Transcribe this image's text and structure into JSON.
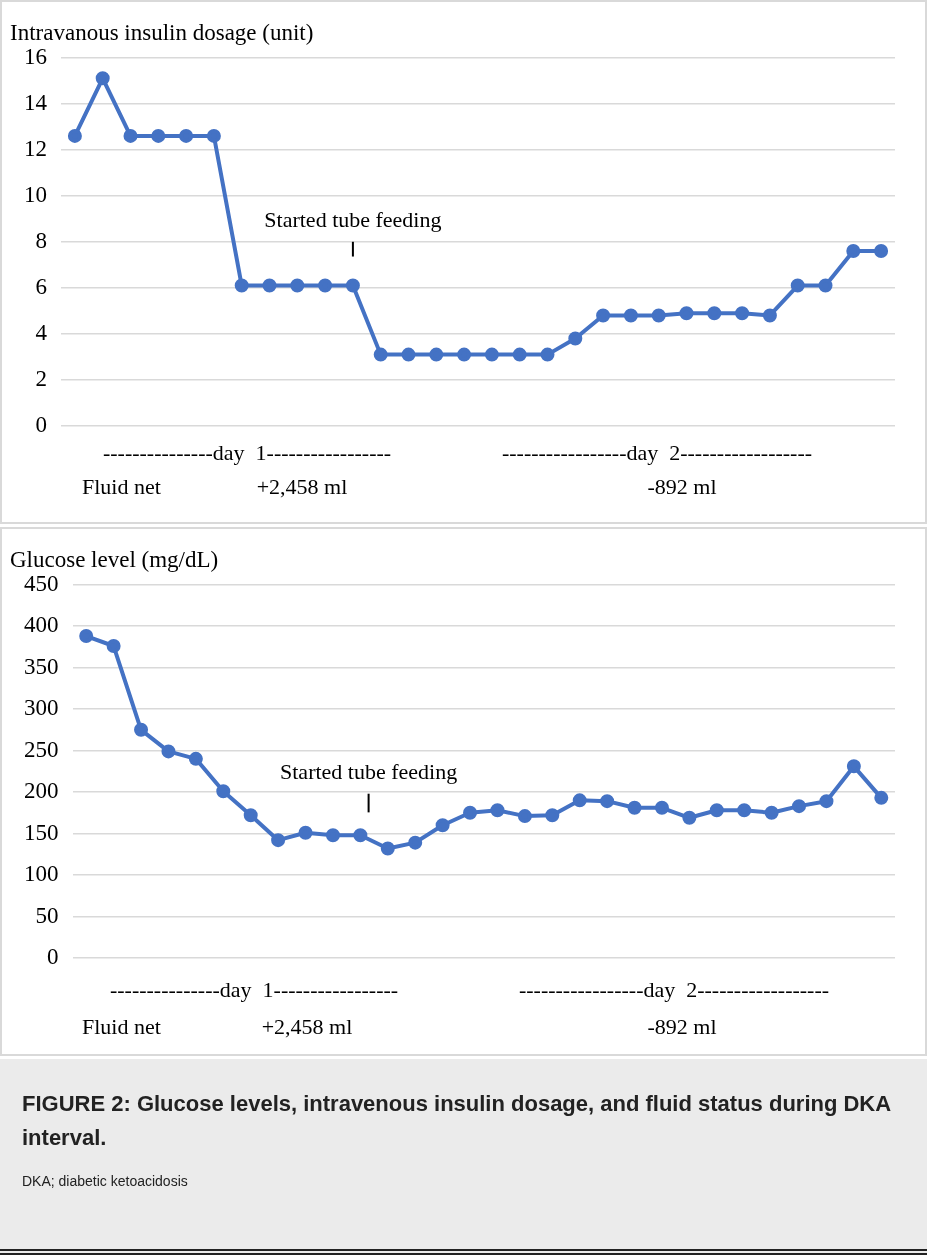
{
  "chart_data": [
    {
      "type": "line",
      "title": "Intravanous insulin dosage (unit)",
      "categories": [
        null,
        null,
        null,
        null,
        null,
        null,
        null,
        null,
        null,
        null,
        null,
        null,
        null,
        null,
        null,
        null,
        null,
        null,
        null,
        null,
        null,
        null,
        null,
        null,
        null,
        null,
        null,
        null,
        null,
        null
      ],
      "values": [
        12.6,
        15.1,
        12.6,
        12.6,
        12.6,
        12.6,
        6.1,
        6.1,
        6.1,
        6.1,
        6.1,
        3.1,
        3.1,
        3.1,
        3.1,
        3.1,
        3.1,
        3.1,
        3.8,
        4.8,
        4.8,
        4.8,
        4.9,
        4.9,
        4.9,
        4.8,
        6.1,
        6.1,
        7.6,
        7.6
      ],
      "color": "#4472c4",
      "ylim": [
        0,
        16
      ],
      "yticks": [
        0,
        2,
        4,
        6,
        8,
        10,
        12,
        14,
        16
      ],
      "grid": "y",
      "tick_labels": "y",
      "marker": "circle",
      "line_style": "solid",
      "annotations": [
        "Started tube feeding",
        "---------------day  1-----------------",
        "-----------------day  2------------------",
        "Fluid net",
        "+2,458 ml",
        "-892 ml"
      ]
    },
    {
      "type": "line",
      "title": "Glucose level (mg/dL)",
      "categories": [
        null,
        null,
        null,
        null,
        null,
        null,
        null,
        null,
        null,
        null,
        null,
        null,
        null,
        null,
        null,
        null,
        null,
        null,
        null,
        null,
        null,
        null,
        null,
        null,
        null,
        null,
        null,
        null,
        null,
        null
      ],
      "values": [
        388,
        376,
        275,
        249,
        240,
        201,
        172,
        142,
        151,
        148,
        148,
        132,
        139,
        160,
        175,
        178,
        171,
        172,
        190,
        189,
        181,
        181,
        169,
        178,
        178,
        175,
        183,
        189,
        231,
        193
      ],
      "color": "#4472c4",
      "ylim": [
        0,
        450
      ],
      "yticks": [
        0,
        50,
        100,
        150,
        200,
        250,
        300,
        350,
        400,
        450
      ],
      "grid": "y",
      "tick_labels": "y",
      "marker": "circle",
      "line_style": "solid",
      "annotations": [
        "Started tube feeding",
        "---------------day  1-----------------",
        "-----------------day  2------------------",
        "Fluid net",
        "+2,458 ml",
        "-892 ml"
      ]
    },
    {
      "type": "other",
      "title": "FIGURE 2: Glucose levels, intravenous insulin dosage, and fluid status during DKA interval.",
      "annotations": [
        "DKA; diabetic ketoacidosis"
      ]
    }
  ]
}
